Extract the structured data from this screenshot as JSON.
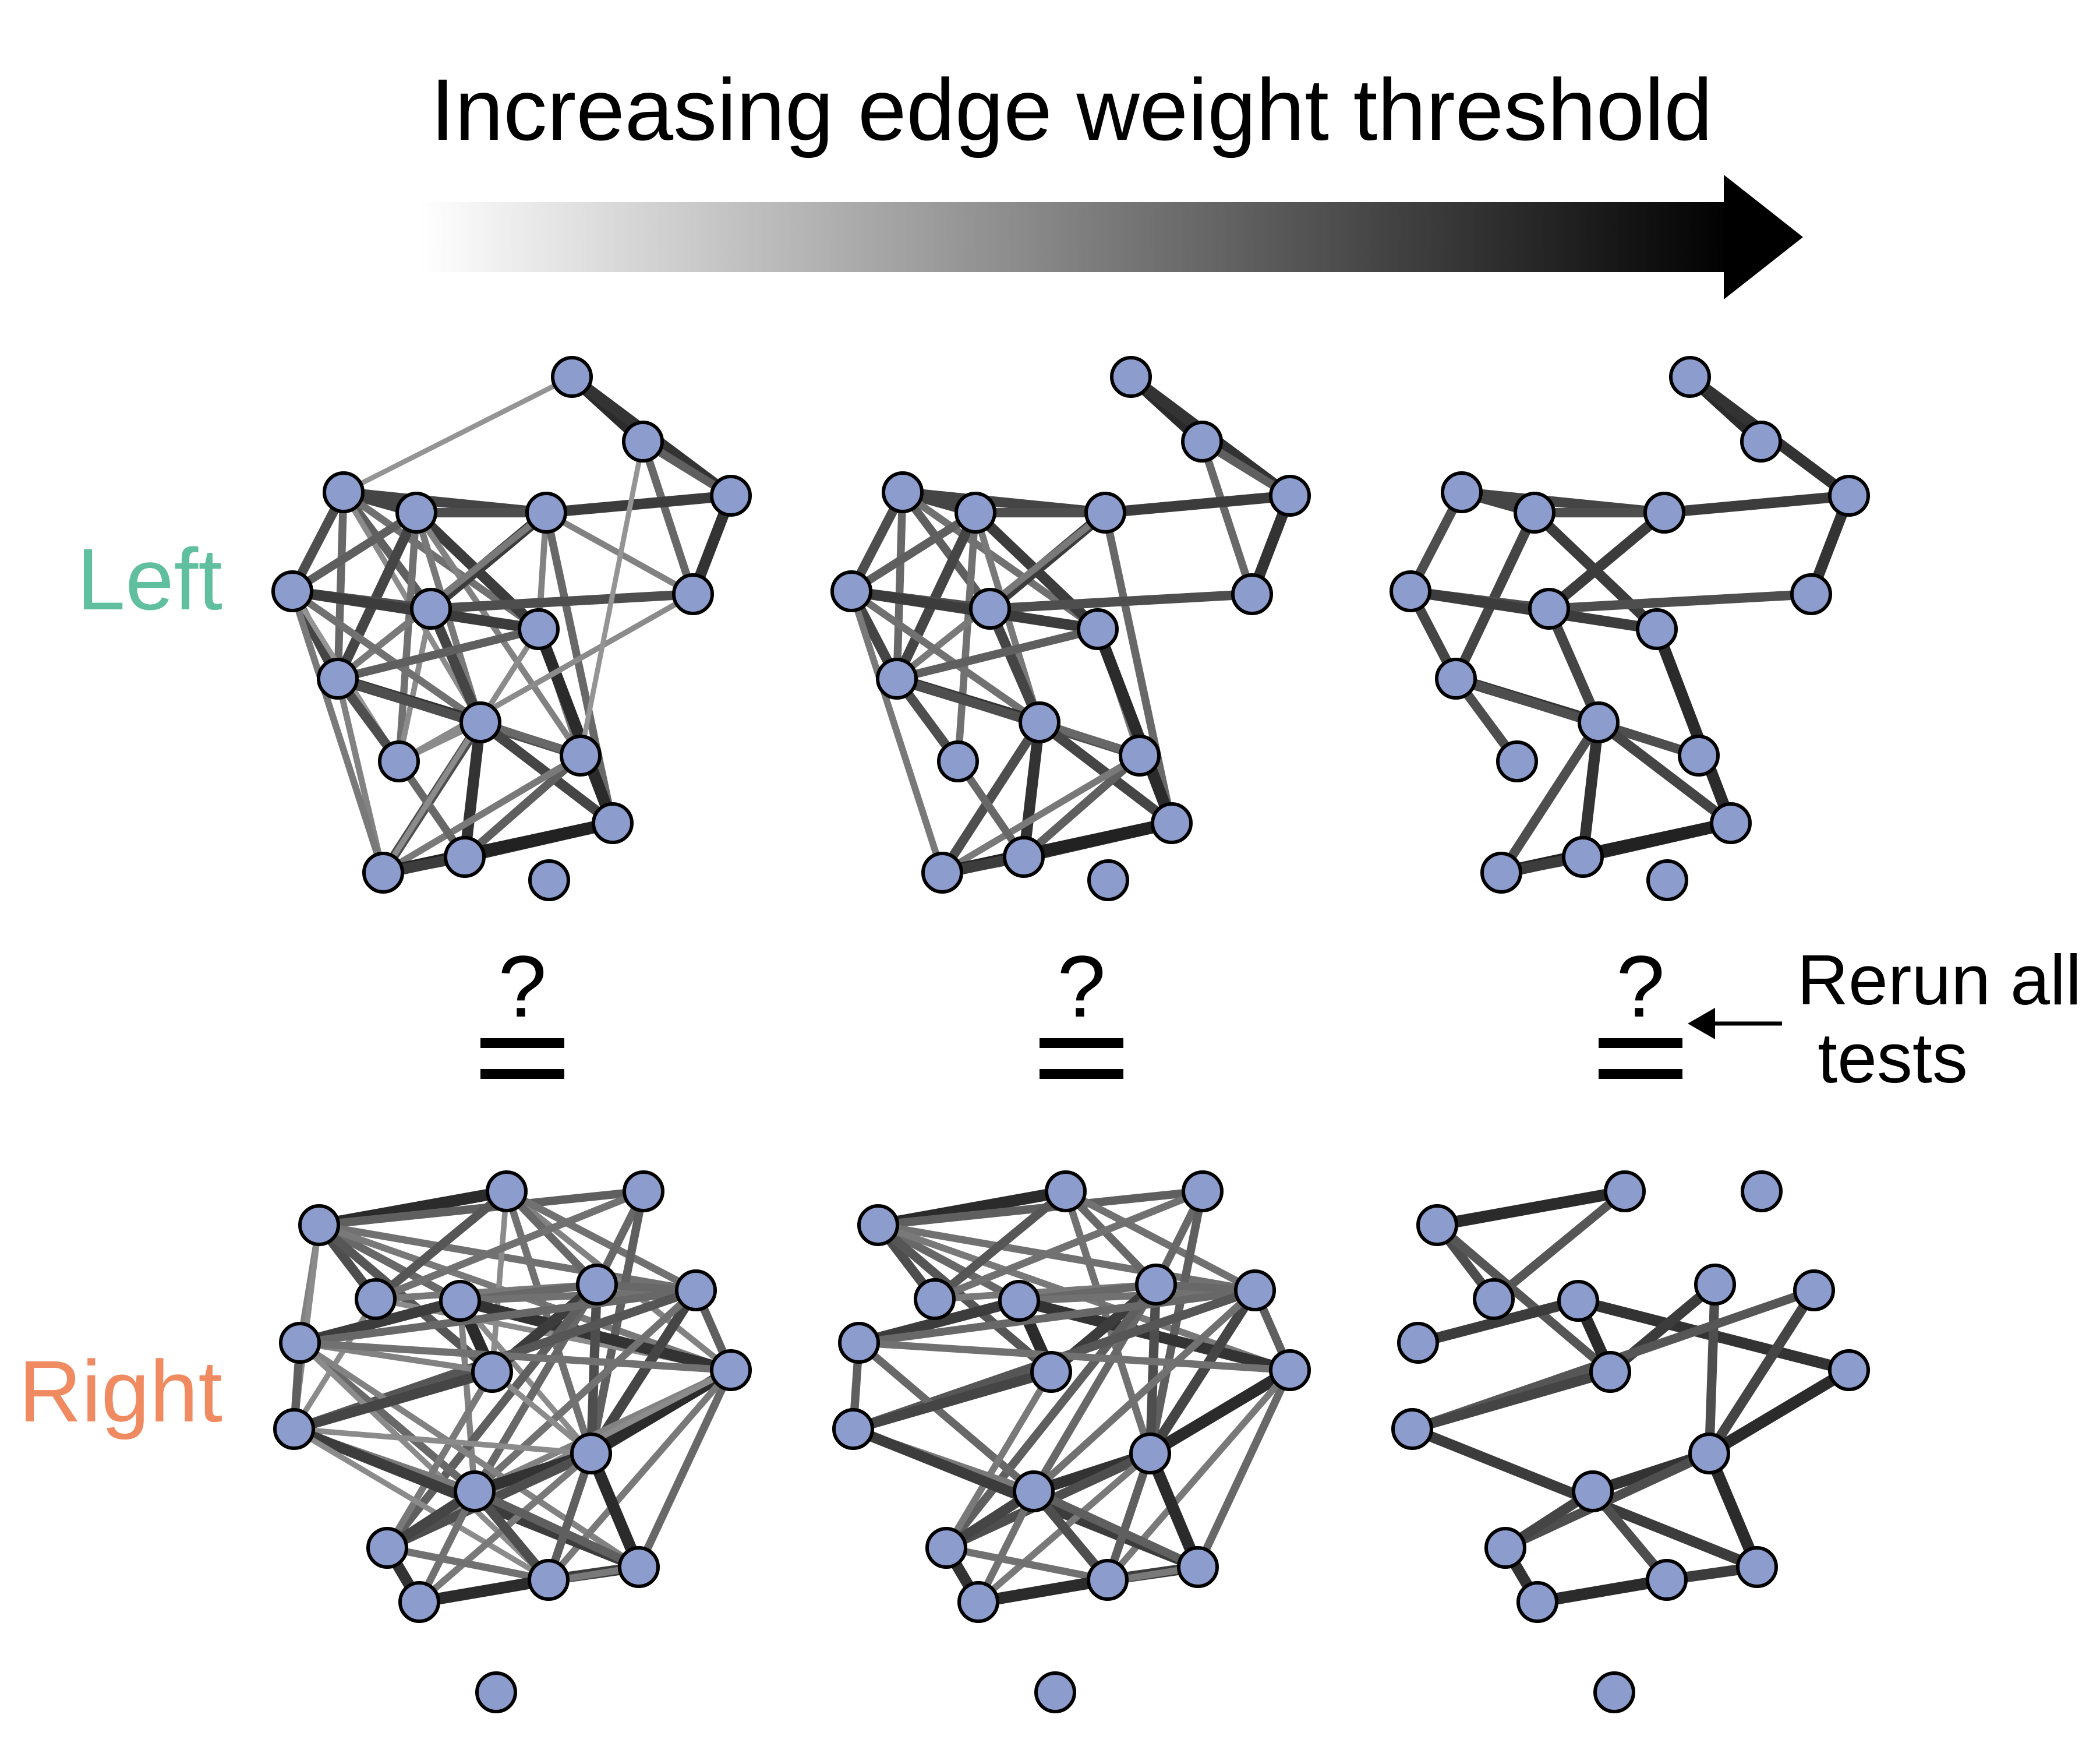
{
  "title": "Increasing edge weight threshold",
  "row_labels": {
    "left": "Left",
    "right": "Right"
  },
  "compare_symbol": {
    "question": "?",
    "equals": "="
  },
  "annotation": {
    "line1": "Rerun all",
    "line2": "tests"
  },
  "colors": {
    "node_fill": "#8c9ccd",
    "node_stroke": "#000000",
    "left_label": "#5fbf9f",
    "right_label": "#f08a60",
    "arrow_dark": "#000000",
    "arrow_light": "#ffffff"
  },
  "graphs": {
    "left": {
      "edges": [
        [
          0,
          1,
          0.9
        ],
        [
          0,
          2,
          0.85
        ],
        [
          0,
          4,
          0.3
        ],
        [
          1,
          2,
          0.6
        ],
        [
          1,
          3,
          0.55
        ],
        [
          2,
          3,
          0.85
        ],
        [
          2,
          7,
          0.8
        ],
        [
          4,
          5,
          0.75
        ],
        [
          4,
          6,
          0.7
        ],
        [
          4,
          7,
          0.75
        ],
        [
          4,
          8,
          0.6
        ],
        [
          4,
          10,
          0.55
        ],
        [
          4,
          9,
          0.5
        ],
        [
          4,
          11,
          0.35
        ],
        [
          5,
          7,
          0.7
        ],
        [
          5,
          9,
          0.8
        ],
        [
          5,
          6,
          0.6
        ],
        [
          5,
          11,
          0.45
        ],
        [
          5,
          12,
          0.4
        ],
        [
          5,
          10,
          0.75
        ],
        [
          5,
          13,
          0.5
        ],
        [
          7,
          8,
          0.8
        ],
        [
          7,
          10,
          0.45
        ],
        [
          7,
          9,
          0.4
        ],
        [
          7,
          14,
          0.55
        ],
        [
          3,
          8,
          0.7
        ],
        [
          3,
          7,
          0.4
        ],
        [
          8,
          6,
          0.7
        ],
        [
          8,
          11,
          0.75
        ],
        [
          8,
          13,
          0.35
        ],
        [
          6,
          9,
          0.8
        ],
        [
          6,
          10,
          0.75
        ],
        [
          6,
          11,
          0.5
        ],
        [
          6,
          13,
          0.3
        ],
        [
          9,
          10,
          0.6
        ],
        [
          9,
          12,
          0.45
        ],
        [
          9,
          14,
          0.9
        ],
        [
          10,
          11,
          0.85
        ],
        [
          10,
          12,
          0.7
        ],
        [
          10,
          13,
          0.7
        ],
        [
          10,
          16,
          0.4
        ],
        [
          11,
          12,
          0.55
        ],
        [
          11,
          13,
          0.35
        ],
        [
          11,
          14,
          0.75
        ],
        [
          11,
          15,
          0.85
        ],
        [
          11,
          16,
          0.7
        ],
        [
          12,
          15,
          0.6
        ],
        [
          12,
          16,
          0.45
        ],
        [
          13,
          15,
          0.55
        ],
        [
          14,
          15,
          0.9
        ],
        [
          14,
          16,
          0.95
        ],
        [
          15,
          16,
          0.8
        ],
        [
          3,
          13,
          0.35
        ],
        [
          1,
          12,
          0.3
        ],
        [
          6,
          16,
          0.45
        ],
        [
          9,
          16,
          0.35
        ]
      ]
    },
    "right": {
      "edges": [
        [
          0,
          1,
          0.9
        ],
        [
          0,
          2,
          0.6
        ],
        [
          0,
          4,
          0.55
        ],
        [
          0,
          3,
          0.7
        ],
        [
          0,
          6,
          0.5
        ],
        [
          0,
          7,
          0.4
        ],
        [
          0,
          8,
          0.65
        ],
        [
          0,
          10,
          0.35
        ],
        [
          0,
          9,
          0.45
        ],
        [
          1,
          3,
          0.65
        ],
        [
          1,
          8,
          0.35
        ],
        [
          1,
          9,
          0.4
        ],
        [
          1,
          6,
          0.5
        ],
        [
          1,
          11,
          0.5
        ],
        [
          1,
          5,
          0.55
        ],
        [
          2,
          5,
          0.55
        ],
        [
          2,
          11,
          0.6
        ],
        [
          2,
          3,
          0.5
        ],
        [
          3,
          5,
          0.45
        ],
        [
          3,
          9,
          0.35
        ],
        [
          3,
          10,
          0.35
        ],
        [
          4,
          5,
          0.55
        ],
        [
          4,
          6,
          0.5
        ],
        [
          4,
          7,
          0.8
        ],
        [
          4,
          8,
          0.9
        ],
        [
          4,
          9,
          0.85
        ],
        [
          4,
          11,
          0.35
        ],
        [
          4,
          12,
          0.4
        ],
        [
          5,
          6,
          0.55
        ],
        [
          5,
          8,
          0.8
        ],
        [
          5,
          11,
          0.7
        ],
        [
          5,
          12,
          0.55
        ],
        [
          5,
          13,
          0.6
        ],
        [
          6,
          7,
          0.55
        ],
        [
          6,
          9,
          0.6
        ],
        [
          6,
          10,
          0.65
        ],
        [
          6,
          11,
          0.75
        ],
        [
          6,
          12,
          0.5
        ],
        [
          7,
          8,
          0.4
        ],
        [
          7,
          9,
          0.5
        ],
        [
          7,
          10,
          0.6
        ],
        [
          7,
          12,
          0.55
        ],
        [
          7,
          14,
          0.4
        ],
        [
          7,
          15,
          0.35
        ],
        [
          8,
          10,
          0.75
        ],
        [
          8,
          11,
          0.35
        ],
        [
          8,
          13,
          0.45
        ],
        [
          9,
          11,
          0.9
        ],
        [
          9,
          12,
          0.4
        ],
        [
          9,
          13,
          0.35
        ],
        [
          9,
          14,
          0.55
        ],
        [
          9,
          15,
          0.45
        ],
        [
          10,
          11,
          0.35
        ],
        [
          10,
          12,
          0.45
        ],
        [
          10,
          14,
          0.8
        ],
        [
          10,
          15,
          0.35
        ],
        [
          11,
          12,
          0.85
        ],
        [
          11,
          13,
          0.7
        ],
        [
          11,
          14,
          0.9
        ],
        [
          11,
          15,
          0.6
        ],
        [
          11,
          16,
          0.45
        ],
        [
          12,
          13,
          0.75
        ],
        [
          12,
          14,
          0.6
        ],
        [
          12,
          15,
          0.7
        ],
        [
          12,
          16,
          0.5
        ],
        [
          13,
          15,
          0.5
        ],
        [
          13,
          16,
          0.85
        ],
        [
          14,
          15,
          0.8
        ],
        [
          14,
          16,
          0.45
        ],
        [
          15,
          16,
          0.9
        ]
      ]
    }
  }
}
